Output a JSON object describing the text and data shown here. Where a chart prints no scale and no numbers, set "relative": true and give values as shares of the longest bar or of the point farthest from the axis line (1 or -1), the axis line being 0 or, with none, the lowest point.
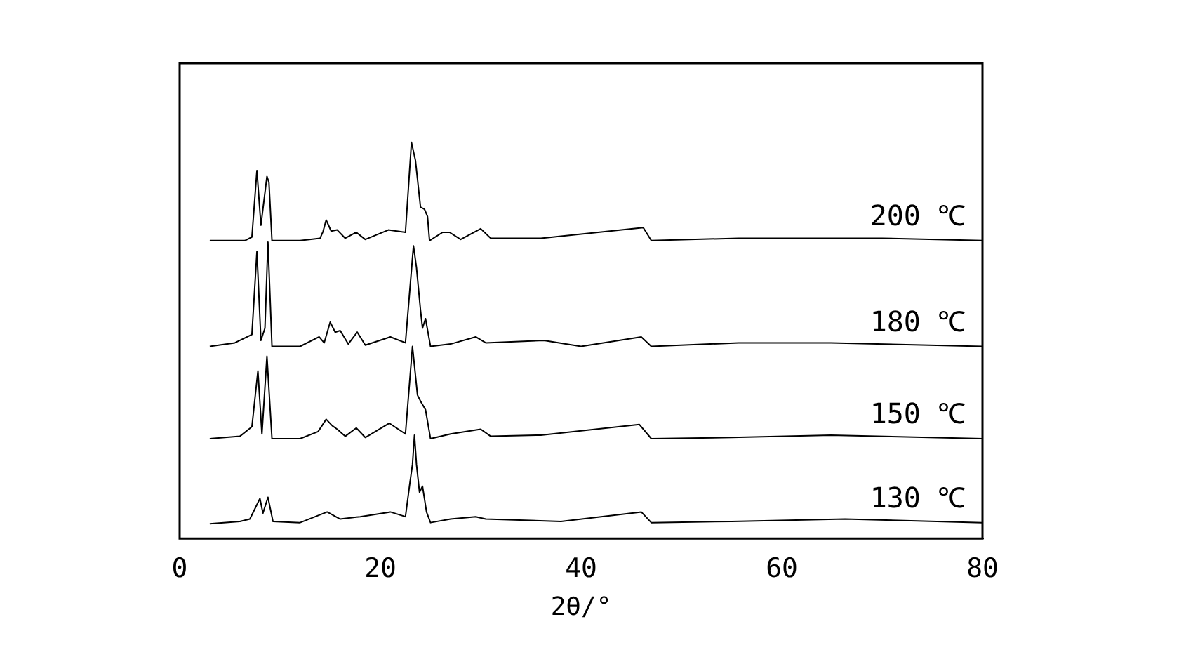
{
  "chart_data": {
    "type": "line",
    "xlabel": "2θ/°",
    "relative": true,
    "xlim": [
      0,
      80
    ],
    "xticks": [
      0,
      20,
      40,
      60,
      80
    ],
    "tick_labels": "x",
    "grid": false,
    "legend": false,
    "marker": "none",
    "line_style": "solid",
    "series": [
      {
        "name": "200 ℃",
        "color": "#000000",
        "x": [
          3,
          6.5,
          7.2,
          7.7,
          8.1,
          8.7,
          8.9,
          9.2,
          12,
          14.0,
          14.3,
          14.6,
          15.1,
          15.7,
          16.5,
          17.6,
          18.5,
          20.8,
          22.5,
          23.1,
          23.5,
          24.0,
          24.4,
          24.7,
          24.9,
          26.2,
          26.9,
          28,
          30,
          31,
          36,
          46.2,
          47,
          55.7,
          65,
          70,
          80
        ],
        "values": [
          0.752,
          0.752,
          0.761,
          0.929,
          0.791,
          0.914,
          0.899,
          0.752,
          0.752,
          0.758,
          0.776,
          0.804,
          0.776,
          0.779,
          0.758,
          0.773,
          0.755,
          0.779,
          0.773,
          1.0,
          0.954,
          0.837,
          0.831,
          0.813,
          0.752,
          0.773,
          0.773,
          0.755,
          0.782,
          0.758,
          0.758,
          0.785,
          0.752,
          0.758,
          0.758,
          0.758,
          0.752
        ]
      },
      {
        "name": "180 ℃",
        "color": "#000000",
        "x": [
          3,
          5.5,
          7.2,
          7.7,
          8.1,
          8.5,
          8.8,
          9.2,
          12,
          13.9,
          14.4,
          15.0,
          15.5,
          16.0,
          16.8,
          17.7,
          18.5,
          21.0,
          22.5,
          23.3,
          23.6,
          24.0,
          24.2,
          24.5,
          25.0,
          27,
          29.5,
          30.5,
          36.3,
          40,
          46.0,
          47,
          55.7,
          64.9,
          80
        ],
        "values": [
          0.485,
          0.494,
          0.515,
          0.724,
          0.5,
          0.531,
          0.748,
          0.485,
          0.485,
          0.509,
          0.494,
          0.546,
          0.521,
          0.525,
          0.491,
          0.521,
          0.488,
          0.509,
          0.494,
          0.739,
          0.684,
          0.577,
          0.531,
          0.555,
          0.485,
          0.491,
          0.509,
          0.494,
          0.5,
          0.485,
          0.509,
          0.485,
          0.494,
          0.494,
          0.485
        ]
      },
      {
        "name": "150 ℃",
        "color": "#000000",
        "x": [
          3,
          6.0,
          7.2,
          7.8,
          8.2,
          8.7,
          9.2,
          12,
          13.8,
          14.6,
          15.2,
          15.7,
          16.5,
          17.6,
          18.5,
          20.9,
          22.5,
          23.2,
          23.7,
          24.0,
          24.5,
          25.0,
          27,
          30.0,
          31,
          36,
          45.8,
          47,
          55,
          64.9,
          80
        ],
        "values": [
          0.252,
          0.258,
          0.282,
          0.423,
          0.264,
          0.46,
          0.252,
          0.252,
          0.27,
          0.301,
          0.285,
          0.276,
          0.258,
          0.279,
          0.255,
          0.291,
          0.264,
          0.485,
          0.362,
          0.347,
          0.325,
          0.252,
          0.264,
          0.276,
          0.258,
          0.261,
          0.288,
          0.252,
          0.255,
          0.261,
          0.252
        ]
      },
      {
        "name": "130 ℃",
        "color": "#000000",
        "x": [
          3,
          6,
          7.0,
          8.0,
          8.3,
          8.8,
          9.3,
          12,
          14.7,
          16,
          18.0,
          21.0,
          22.5,
          22.9,
          23.2,
          23.4,
          23.6,
          23.9,
          24.2,
          24.6,
          25.0,
          27,
          29.5,
          30.5,
          38,
          46.0,
          47,
          55,
          66.3,
          80
        ],
        "values": [
          0.037,
          0.043,
          0.049,
          0.101,
          0.064,
          0.104,
          0.043,
          0.04,
          0.067,
          0.049,
          0.055,
          0.067,
          0.055,
          0.132,
          0.187,
          0.261,
          0.187,
          0.117,
          0.132,
          0.067,
          0.04,
          0.049,
          0.055,
          0.049,
          0.043,
          0.067,
          0.04,
          0.043,
          0.049,
          0.04
        ]
      }
    ]
  }
}
